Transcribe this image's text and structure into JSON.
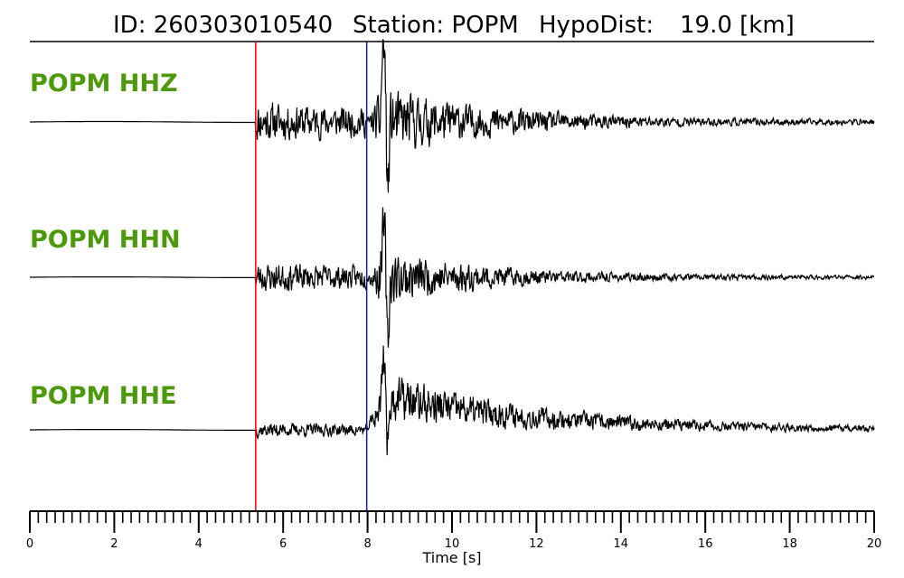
{
  "header": {
    "id_text": "ID: 260303010540",
    "station_text": "Station: POPM",
    "dist_label": "HypoDist:",
    "dist_value": "19.0 [km]"
  },
  "chart_data": {
    "type": "line",
    "xlabel": "Time [s]",
    "xlim": [
      0,
      20
    ],
    "major_ticks": [
      0,
      2,
      4,
      6,
      8,
      10,
      12,
      14,
      16,
      18,
      20
    ],
    "minor_tick_step": 0.2,
    "picks": [
      {
        "phase": "P",
        "time": 5.35,
        "color": "#e8000b"
      },
      {
        "phase": "S",
        "time": 7.98,
        "color": "#0b1fb8"
      }
    ],
    "series": [
      {
        "name": "POPM HHZ",
        "color": "#000000",
        "seed": 11,
        "noise_amp": 0.16,
        "p_amp": 0.5,
        "s_amp": 1.0,
        "decay": 0.32,
        "tail_bias": 0,
        "spike_up": 1.0,
        "spike_down": 0.85
      },
      {
        "name": "POPM HHN",
        "color": "#000000",
        "seed": 23,
        "noise_amp": 0.14,
        "p_amp": 0.42,
        "s_amp": 1.0,
        "decay": 0.38,
        "tail_bias": 0,
        "spike_up": 0.7,
        "spike_down": 0.95
      },
      {
        "name": "POPM HHE",
        "color": "#000000",
        "seed": 37,
        "noise_amp": 0.1,
        "p_amp": 0.18,
        "s_amp": 0.85,
        "decay": 0.22,
        "tail_bias": 1,
        "spike_up": 0.75,
        "spike_down": 0.8
      }
    ],
    "label_color": "#4c9a0a"
  }
}
